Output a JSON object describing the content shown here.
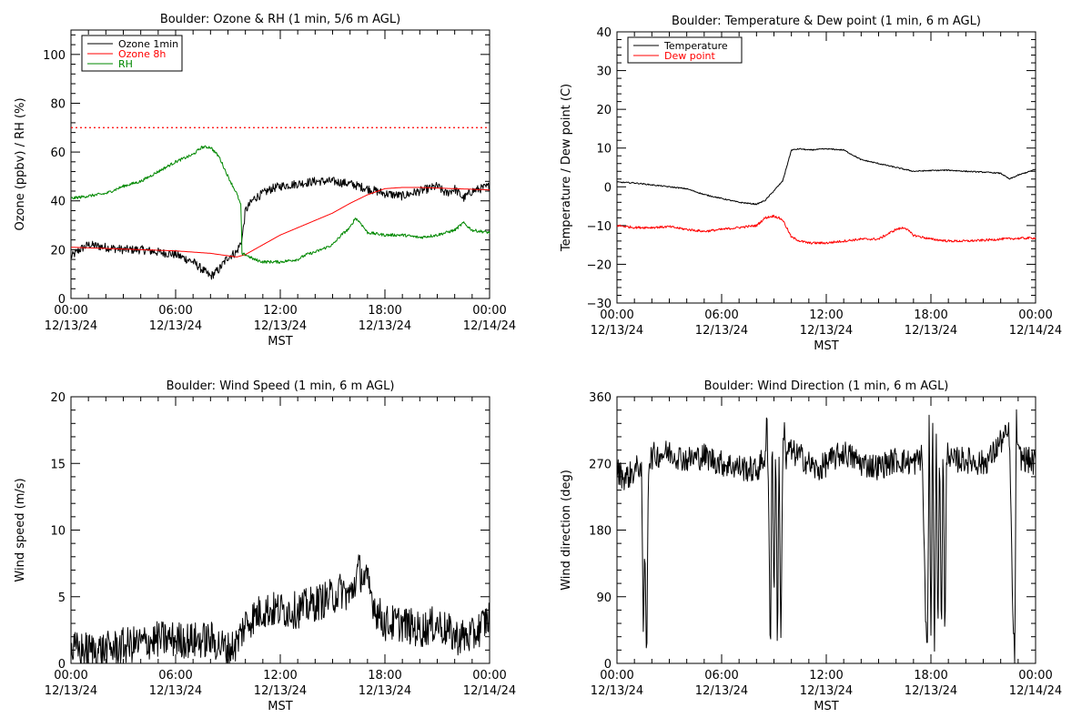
{
  "chart_data": [
    {
      "type": "line",
      "title": "Boulder: Ozone & RH (1 min, 5/6 m AGL)",
      "ylabel": "Ozone (ppbv) / RH (%)",
      "xlabel": "MST",
      "xlim": [
        0,
        24
      ],
      "ylim": [
        0,
        110
      ],
      "x_ticks": [
        0,
        6,
        12,
        18,
        24
      ],
      "x_tick_labels": [
        [
          "00:00",
          "12/13/24"
        ],
        [
          "06:00",
          "12/13/24"
        ],
        [
          "12:00",
          "12/13/24"
        ],
        [
          "18:00",
          "12/13/24"
        ],
        [
          "00:00",
          "12/14/24"
        ]
      ],
      "y_ticks": [
        0,
        20,
        40,
        60,
        80,
        100
      ],
      "y_tick_labels": [
        "0",
        "20",
        "40",
        "60",
        "80",
        "100"
      ],
      "legend": "top-left",
      "reference_line": {
        "y": 70,
        "color": "#ff0000",
        "style": "dotted"
      },
      "series": [
        {
          "name": "Ozone 1min",
          "color": "#000000",
          "noise": 1.8,
          "x": [
            0,
            0.5,
            1,
            2,
            3,
            4,
            5,
            6,
            7,
            8,
            8.5,
            9,
            9.5,
            9.8,
            10,
            10.5,
            11,
            11.5,
            12,
            13,
            14,
            15,
            16,
            17,
            18,
            19,
            20,
            21,
            21.5,
            22,
            22.5,
            23,
            24
          ],
          "y": [
            17,
            20,
            22,
            21,
            20,
            20,
            19,
            18,
            15,
            9,
            12,
            17,
            19,
            24,
            36,
            41,
            43,
            45,
            46,
            47,
            48,
            48,
            47,
            45,
            43,
            42,
            44,
            46,
            43,
            45,
            41,
            44,
            46
          ]
        },
        {
          "name": "Ozone 8h",
          "color": "#ff0000",
          "noise": 0,
          "x": [
            0,
            2,
            4,
            6,
            8,
            9,
            9.5,
            10,
            11,
            12,
            13,
            14,
            15,
            16,
            17,
            18,
            19,
            20,
            22,
            24
          ],
          "y": [
            21,
            20.5,
            20,
            19.5,
            18.5,
            17.5,
            17,
            18,
            22,
            26,
            29,
            32,
            35,
            39,
            42.5,
            45,
            45.5,
            45.5,
            45,
            44.5
          ]
        },
        {
          "name": "RH",
          "color": "#008800",
          "noise": 0.6,
          "x": [
            0,
            1,
            2,
            3,
            4,
            5,
            6,
            7,
            7.5,
            8,
            8.5,
            9,
            9.5,
            9.6,
            9.75,
            9.8,
            10,
            10.5,
            11,
            12,
            13,
            13.5,
            14,
            15,
            15.5,
            16,
            16.3,
            16.6,
            17,
            18,
            19,
            20,
            21,
            22,
            22.5,
            23,
            24
          ],
          "y": [
            41,
            42,
            43,
            46,
            48,
            52,
            56,
            59,
            62,
            62,
            58,
            50,
            43,
            41,
            38,
            18,
            18,
            16,
            15,
            15,
            16,
            18,
            19,
            22,
            26,
            29,
            33,
            31,
            27,
            26,
            26,
            25,
            26,
            28,
            31,
            28,
            27
          ]
        }
      ]
    },
    {
      "type": "line",
      "title": "Boulder: Temperature & Dew point (1 min, 6 m AGL)",
      "ylabel": "Temperature / Dew point (C)",
      "xlabel": "MST",
      "xlim": [
        0,
        24
      ],
      "ylim": [
        -30,
        40
      ],
      "x_ticks": [
        0,
        6,
        12,
        18,
        24
      ],
      "x_tick_labels": [
        [
          "00:00",
          "12/13/24"
        ],
        [
          "06:00",
          "12/13/24"
        ],
        [
          "12:00",
          "12/13/24"
        ],
        [
          "18:00",
          "12/13/24"
        ],
        [
          "00:00",
          "12/14/24"
        ]
      ],
      "y_ticks": [
        -30,
        -20,
        -10,
        0,
        10,
        20,
        30,
        40
      ],
      "y_tick_labels": [
        "−30",
        "−20",
        "−10",
        "0",
        "10",
        "20",
        "30",
        "40"
      ],
      "legend": "top-left",
      "series": [
        {
          "name": "Temperature",
          "color": "#000000",
          "noise": 0.15,
          "x": [
            0,
            1,
            2,
            3,
            4,
            5,
            6,
            7,
            8,
            8.5,
            9,
            9.5,
            10,
            10.5,
            11,
            12,
            13,
            14,
            15,
            16,
            17,
            18,
            19,
            20,
            21,
            22,
            22.5,
            23,
            24
          ],
          "y": [
            1.2,
            1,
            0.5,
            0,
            -0.5,
            -2,
            -3,
            -4,
            -4.5,
            -3.5,
            -1,
            1.5,
            9.5,
            9.8,
            9.5,
            9.8,
            9.5,
            7,
            6,
            5,
            4,
            4.2,
            4.3,
            4,
            3.8,
            3.5,
            2,
            3,
            4.5
          ]
        },
        {
          "name": "Dew point",
          "color": "#ff0000",
          "noise": 0.3,
          "x": [
            0,
            1,
            2,
            3,
            4,
            5,
            6,
            7,
            8,
            8.5,
            9,
            9.5,
            10,
            10.5,
            11,
            12,
            13,
            14,
            15,
            16,
            16.5,
            17,
            18,
            19,
            20,
            21,
            22,
            23,
            24
          ],
          "y": [
            -10,
            -10.5,
            -10.5,
            -10.3,
            -11,
            -11.5,
            -11,
            -10.5,
            -10,
            -8,
            -7.5,
            -8.5,
            -13,
            -14,
            -14.5,
            -14.5,
            -14,
            -13.5,
            -13.5,
            -11,
            -10.5,
            -12.5,
            -13.5,
            -14,
            -14,
            -13.8,
            -13.5,
            -13.3,
            -13.2
          ]
        }
      ]
    },
    {
      "type": "line",
      "title": "Boulder: Wind Speed (1 min, 6 m AGL)",
      "ylabel": "Wind speed (m/s)",
      "xlabel": "MST",
      "xlim": [
        0,
        24
      ],
      "ylim": [
        0,
        20
      ],
      "x_ticks": [
        0,
        6,
        12,
        18,
        24
      ],
      "x_tick_labels": [
        [
          "00:00",
          "12/13/24"
        ],
        [
          "06:00",
          "12/13/24"
        ],
        [
          "12:00",
          "12/13/24"
        ],
        [
          "18:00",
          "12/13/24"
        ],
        [
          "00:00",
          "12/14/24"
        ]
      ],
      "y_ticks": [
        0,
        5,
        10,
        15,
        20
      ],
      "y_tick_labels": [
        "0",
        "5",
        "10",
        "15",
        "20"
      ],
      "series": [
        {
          "name": "",
          "color": "#000000",
          "noise": 1.4,
          "clip_min": 0,
          "x": [
            0,
            1,
            2,
            3,
            4,
            5,
            6,
            7,
            8,
            9,
            9.5,
            10,
            11,
            12,
            13,
            14,
            15,
            15.5,
            16,
            16.5,
            17,
            17.5,
            18,
            19,
            20,
            21,
            22,
            23,
            24
          ],
          "y": [
            1,
            1,
            1,
            1.3,
            1.5,
            1.8,
            1.8,
            1.7,
            1.8,
            1,
            1.5,
            3,
            4,
            4,
            4,
            4.5,
            5,
            5.5,
            5,
            7,
            6,
            4,
            3,
            3,
            2.5,
            3,
            2,
            2,
            3.5
          ]
        }
      ]
    },
    {
      "type": "line",
      "title": "Boulder: Wind Direction (1 min, 6 m AGL)",
      "ylabel": "Wind direction (deg)",
      "xlabel": "MST",
      "xlim": [
        0,
        24
      ],
      "ylim": [
        0,
        360
      ],
      "x_ticks": [
        0,
        6,
        12,
        18,
        24
      ],
      "x_tick_labels": [
        [
          "00:00",
          "12/13/24"
        ],
        [
          "06:00",
          "12/13/24"
        ],
        [
          "12:00",
          "12/13/24"
        ],
        [
          "18:00",
          "12/13/24"
        ],
        [
          "00:00",
          "12/14/24"
        ]
      ],
      "y_ticks": [
        0,
        90,
        180,
        270,
        360
      ],
      "y_tick_labels": [
        "0",
        "90",
        "180",
        "270",
        "360"
      ],
      "series": [
        {
          "name": "",
          "color": "#000000",
          "noise": 18,
          "clip_min": 0,
          "clip_max": 360,
          "x": [
            0,
            0.5,
            1,
            1.4,
            1.5,
            1.6,
            1.7,
            1.8,
            2,
            3,
            4,
            5,
            6,
            7,
            8,
            8.5,
            8.6,
            8.7,
            8.8,
            8.9,
            9,
            9.1,
            9.2,
            9.3,
            9.4,
            9.5,
            9.6,
            9.7,
            9.8,
            10,
            10.5,
            11,
            11.5,
            12,
            13,
            14,
            15,
            16,
            17,
            17.5,
            17.7,
            17.8,
            17.9,
            18,
            18.1,
            18.2,
            18.3,
            18.4,
            18.5,
            18.6,
            18.7,
            18.8,
            18.9,
            19,
            19.2,
            19.5,
            20,
            21,
            21.5,
            22,
            22.5,
            22.7,
            22.8,
            22.9,
            23,
            24
          ],
          "y": [
            260,
            250,
            260,
            270,
            40,
            150,
            0,
            270,
            280,
            285,
            275,
            280,
            270,
            265,
            260,
            280,
            330,
            200,
            10,
            340,
            60,
            320,
            10,
            300,
            5,
            280,
            330,
            260,
            290,
            285,
            280,
            270,
            260,
            270,
            285,
            270,
            265,
            275,
            270,
            280,
            60,
            10,
            340,
            20,
            350,
            0,
            320,
            40,
            300,
            10,
            330,
            5,
            280,
            290,
            270,
            275,
            275,
            270,
            280,
            300,
            310,
            60,
            5,
            330,
            280,
            270
          ]
        }
      ]
    }
  ]
}
